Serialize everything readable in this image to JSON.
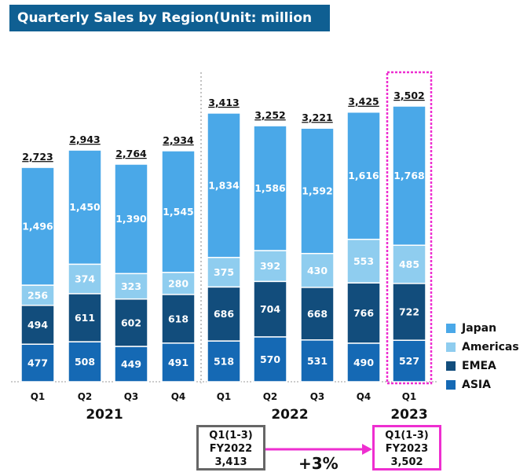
{
  "title": "Quarterly Sales by Region(Unit: million yen)",
  "colors": {
    "Japan": "#4aa8e8",
    "Americas": "#8fcdef",
    "EMEA": "#124d7c",
    "ASIA": "#1569b4",
    "highlight": "#ee2ed0"
  },
  "chart_data": {
    "type": "bar",
    "stacked": true,
    "title": "Quarterly Sales by Region(Unit: million yen)",
    "unit": "million yen",
    "years": [
      {
        "label": "2021",
        "categories": [
          "Q1",
          "Q2",
          "Q3",
          "Q4"
        ]
      },
      {
        "label": "2022",
        "categories": [
          "Q1",
          "Q2",
          "Q3",
          "Q4"
        ]
      },
      {
        "label": "2023",
        "categories": [
          "Q1"
        ]
      }
    ],
    "categories": [
      "Q1",
      "Q2",
      "Q3",
      "Q4",
      "Q1",
      "Q2",
      "Q3",
      "Q4",
      "Q1"
    ],
    "series": [
      {
        "name": "ASIA",
        "values": [
          477,
          508,
          449,
          491,
          518,
          570,
          531,
          490,
          527
        ]
      },
      {
        "name": "EMEA",
        "values": [
          494,
          611,
          602,
          618,
          686,
          704,
          668,
          766,
          722
        ]
      },
      {
        "name": "Americas",
        "values": [
          256,
          374,
          323,
          280,
          375,
          392,
          430,
          553,
          485
        ]
      },
      {
        "name": "Japan",
        "values": [
          1496,
          1450,
          1390,
          1545,
          1834,
          1586,
          1592,
          1616,
          1768
        ]
      }
    ],
    "totals": [
      "2,723",
      "2,943",
      "2,764",
      "2,934",
      "3,413",
      "3,252",
      "3,221",
      "3,425",
      "3,502"
    ],
    "legend": [
      "Japan",
      "Americas",
      "EMEA",
      "ASIA"
    ],
    "legend_position": "right",
    "highlighted_bar_index": 8
  },
  "comparison": {
    "left": {
      "line1": "Q1(1-3)",
      "line2": "FY2022",
      "line3": "3,413"
    },
    "right": {
      "line1": "Q1(1-3)",
      "line2": "FY2023",
      "line3": "3,502"
    },
    "change": "+3%"
  }
}
